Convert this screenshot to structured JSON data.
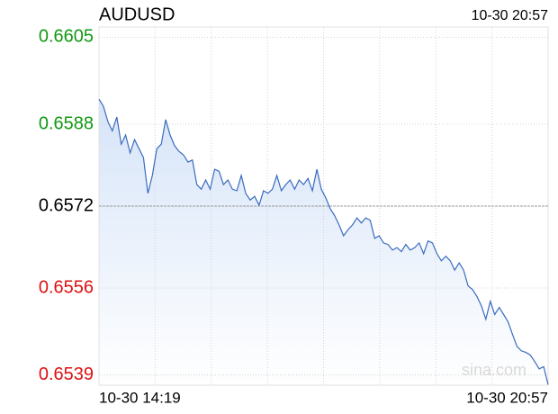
{
  "chart_data": {
    "type": "line",
    "title": "AUDUSD",
    "timestamp": "10-30 20:57",
    "x_labels": [
      "10-30 14:19",
      "10-30 20:57"
    ],
    "watermark": "sina.com",
    "series": [
      {
        "name": "AUDUSD",
        "color": "#3a6bbf",
        "values": [
          0.65929,
          0.65915,
          0.65885,
          0.65867,
          0.65894,
          0.65841,
          0.65859,
          0.65824,
          0.6585,
          0.65832,
          0.65815,
          0.65745,
          0.6578,
          0.65832,
          0.65841,
          0.65889,
          0.65859,
          0.65838,
          0.65827,
          0.6582,
          0.65806,
          0.6581,
          0.65762,
          0.65753,
          0.65771,
          0.65753,
          0.65792,
          0.65788,
          0.65762,
          0.65771,
          0.65753,
          0.6575,
          0.6578,
          0.65745,
          0.65732,
          0.65739,
          0.65722,
          0.6575,
          0.65745,
          0.65753,
          0.6578,
          0.6575,
          0.65762,
          0.65771,
          0.65753,
          0.65771,
          0.65762,
          0.65774,
          0.6575,
          0.65792,
          0.65753,
          0.65736,
          0.65715,
          0.65701,
          0.65683,
          0.65662,
          0.65674,
          0.65683,
          0.65697,
          0.65687,
          0.65697,
          0.65692,
          0.65657,
          0.65662,
          0.65648,
          0.65645,
          0.65634,
          0.65639,
          0.65631,
          0.65645,
          0.65634,
          0.65639,
          0.65648,
          0.65627,
          0.65652,
          0.65648,
          0.65627,
          0.65613,
          0.65622,
          0.65613,
          0.65595,
          0.65609,
          0.65595,
          0.65564,
          0.65557,
          0.65543,
          0.65525,
          0.65499,
          0.65534,
          0.65508,
          0.65522,
          0.65508,
          0.65494,
          0.65469,
          0.65446,
          0.65437,
          0.65434,
          0.65429,
          0.65416,
          0.65402,
          0.65406,
          0.65371
        ]
      }
    ],
    "ylim": [
      0.6537,
      0.6607
    ],
    "yticks": [
      0.6605,
      0.6588,
      0.6572,
      0.6556,
      0.6539
    ],
    "base": 0.6572,
    "up_color": "#119911",
    "down_color": "#dd1111",
    "base_color": "#000000",
    "grid": true
  }
}
